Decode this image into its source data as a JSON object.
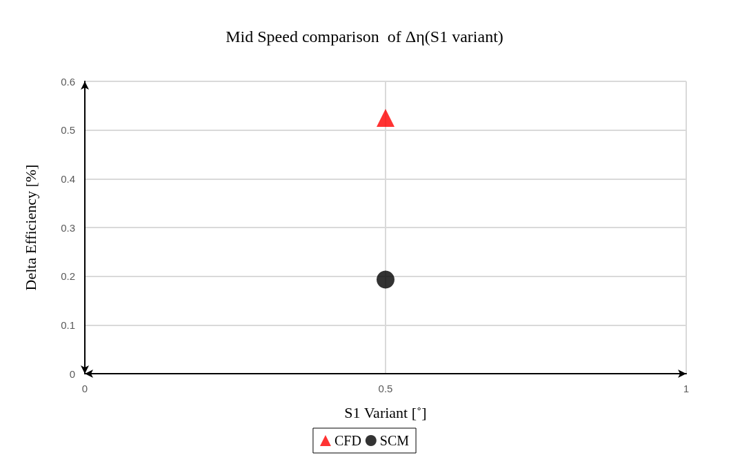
{
  "chart_data": {
    "type": "scatter",
    "title": "Mid Speed comparison  of Δη(S1 variant)",
    "xlabel": "S1 Variant [˚]",
    "ylabel": "Delta Efficiency [%]",
    "series": [
      {
        "name": "CFD",
        "color": "#ff0000",
        "marker": "triangle",
        "x": [
          0.5
        ],
        "values": [
          0.525
        ]
      },
      {
        "name": "SCM",
        "color": "#000000",
        "marker": "circle",
        "x": [
          0.5
        ],
        "values": [
          0.193
        ]
      }
    ],
    "xlim": [
      0,
      1
    ],
    "xticks": [
      0,
      0.5,
      1
    ],
    "ylim": [
      0,
      0.6
    ],
    "yticks": [
      0,
      0.1,
      0.2,
      0.3,
      0.4,
      0.5,
      0.6
    ],
    "grid": true,
    "legend": "bottom"
  }
}
